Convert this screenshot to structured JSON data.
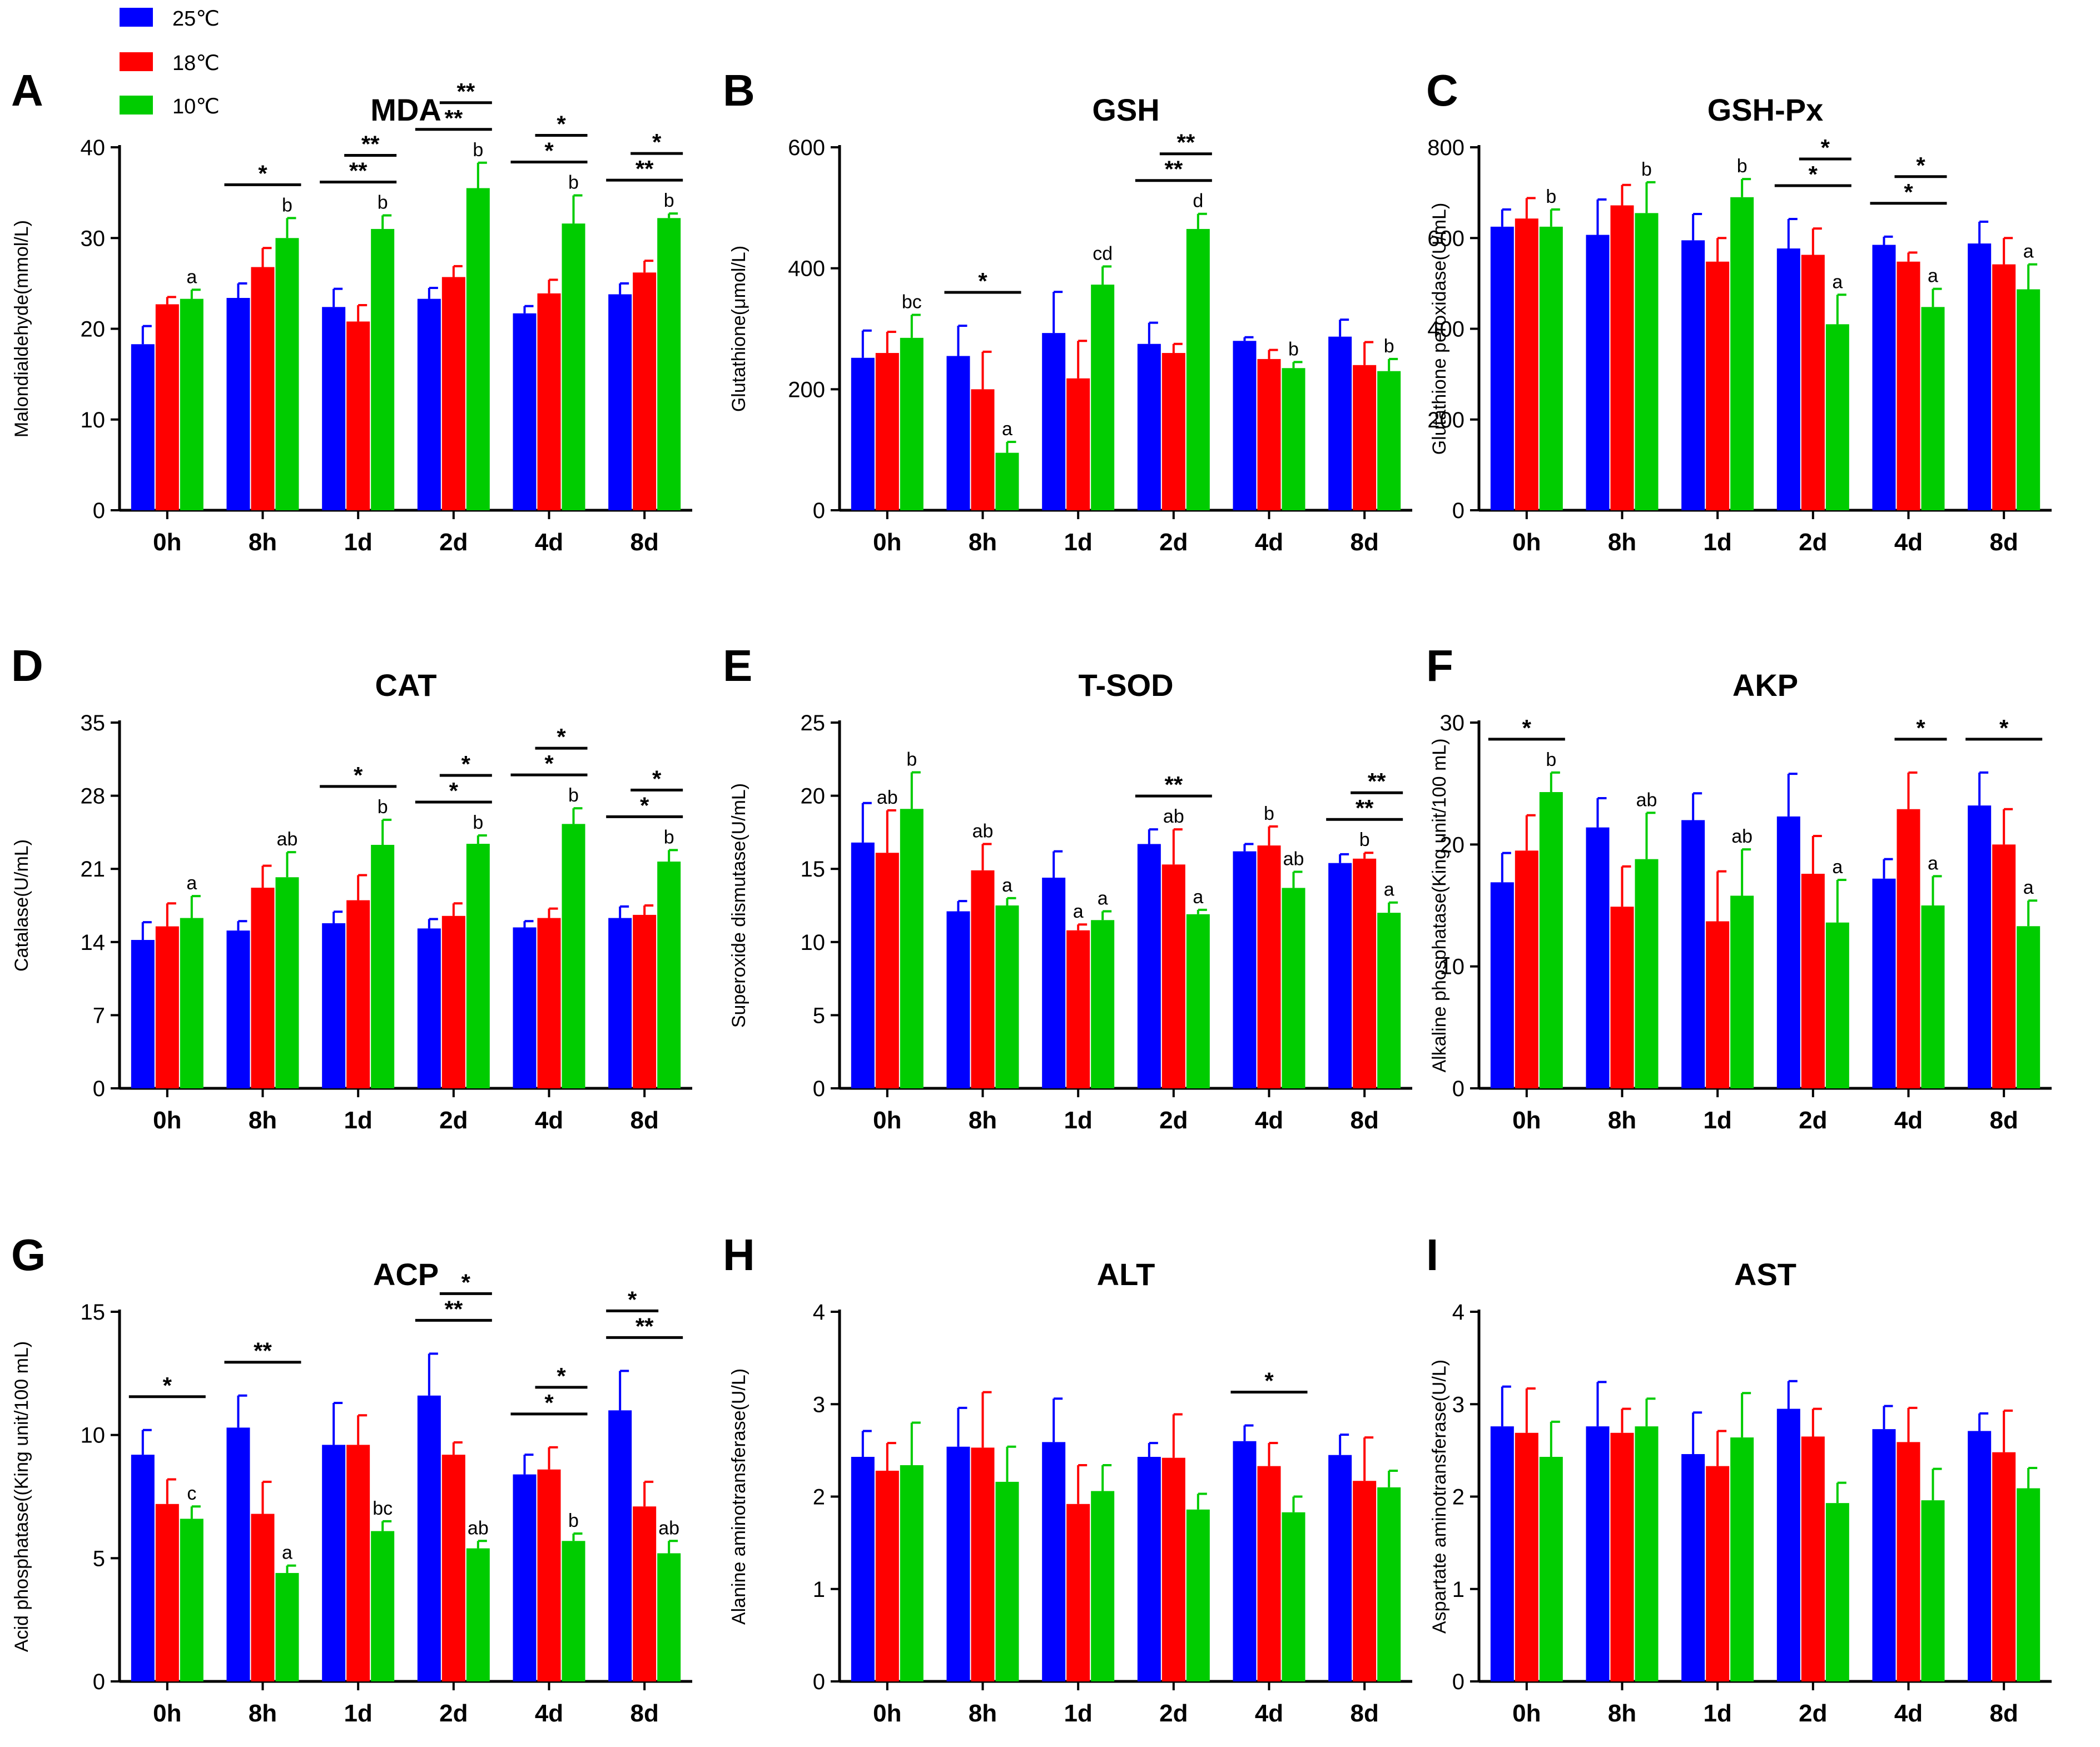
{
  "legend": {
    "entries": [
      {
        "label": "25℃",
        "color": "#0000FF"
      },
      {
        "label": "18℃",
        "color": "#FF0000"
      },
      {
        "label": "10℃",
        "color": "#00CC00"
      }
    ]
  },
  "chart_data": [
    {
      "panel": "A",
      "type": "bar",
      "title": "MDA",
      "ylabel": "Malondialdehyde(mmol/L)",
      "categories": [
        "0h",
        "8h",
        "1d",
        "2d",
        "4d",
        "8d"
      ],
      "ylim": [
        0,
        40
      ],
      "yticks": [
        0,
        10,
        20,
        30,
        40
      ],
      "series": [
        {
          "name": "25℃",
          "values": [
            18.3,
            23.4,
            22.4,
            23.3,
            21.7,
            23.8
          ],
          "errors": [
            2,
            1.6,
            2,
            1.2,
            0.8,
            1.2
          ]
        },
        {
          "name": "18℃",
          "values": [
            22.7,
            26.8,
            20.8,
            25.7,
            23.9,
            26.2
          ],
          "errors": [
            0.8,
            2.1,
            1.8,
            1.2,
            1.5,
            1.3
          ]
        },
        {
          "name": "10℃",
          "values": [
            23.3,
            30.0,
            31.0,
            35.5,
            31.6,
            32.2
          ],
          "errors": [
            1,
            2.2,
            1.5,
            2.8,
            3.1,
            0.5
          ]
        }
      ],
      "letters": [
        "a",
        "b",
        "b",
        "b",
        "b",
        "b"
      ],
      "significance": [
        {
          "category": "8h",
          "pair": "25-10",
          "label": "*"
        },
        {
          "category": "1d",
          "pair": "25-10",
          "label": "**"
        },
        {
          "category": "1d",
          "pair": "18-10",
          "label": "**"
        },
        {
          "category": "2d",
          "pair": "25-10",
          "label": "**"
        },
        {
          "category": "2d",
          "pair": "18-10",
          "label": "**"
        },
        {
          "category": "4d",
          "pair": "25-10",
          "label": "*"
        },
        {
          "category": "4d",
          "pair": "18-10",
          "label": "*"
        },
        {
          "category": "8d",
          "pair": "25-10",
          "label": "**"
        },
        {
          "category": "8d",
          "pair": "18-10",
          "label": "*"
        }
      ]
    },
    {
      "panel": "B",
      "type": "bar",
      "title": "GSH",
      "ylabel": "Glutathione(μmol/L)",
      "categories": [
        "0h",
        "8h",
        "1d",
        "2d",
        "4d",
        "8d"
      ],
      "ylim": [
        0,
        600
      ],
      "yticks": [
        0,
        200,
        400,
        600
      ],
      "series": [
        {
          "name": "25℃",
          "values": [
            252,
            255,
            293,
            275,
            280,
            287
          ],
          "errors": [
            45,
            50,
            68,
            35,
            6,
            28
          ]
        },
        {
          "name": "18℃",
          "values": [
            260,
            200,
            218,
            260,
            250,
            240
          ],
          "errors": [
            35,
            62,
            62,
            15,
            15,
            38
          ]
        },
        {
          "name": "10℃",
          "values": [
            285,
            95,
            373,
            465,
            235,
            230
          ],
          "errors": [
            38,
            18,
            30,
            25,
            10,
            20
          ]
        }
      ],
      "letters": [
        "bc",
        "a",
        "cd",
        "d",
        "b",
        "b"
      ],
      "significance": [
        {
          "category": "8h",
          "pair": "25-10",
          "label": "*"
        },
        {
          "category": "2d",
          "pair": "25-10",
          "label": "**"
        },
        {
          "category": "2d",
          "pair": "18-10",
          "label": "**"
        }
      ]
    },
    {
      "panel": "C",
      "type": "bar",
      "title": "GSH-Px",
      "ylabel": "Glutathione peroxidase(U/mL)",
      "categories": [
        "0h",
        "8h",
        "1d",
        "2d",
        "4d",
        "8d"
      ],
      "ylim": [
        0,
        800
      ],
      "yticks": [
        0,
        200,
        400,
        600,
        800
      ],
      "series": [
        {
          "name": "25℃",
          "values": [
            625,
            607,
            595,
            577,
            585,
            588
          ],
          "errors": [
            38,
            78,
            58,
            65,
            18,
            48
          ]
        },
        {
          "name": "18℃",
          "values": [
            643,
            672,
            548,
            563,
            548,
            542
          ],
          "errors": [
            45,
            45,
            52,
            58,
            20,
            58
          ]
        },
        {
          "name": "10℃",
          "values": [
            625,
            655,
            690,
            410,
            448,
            487
          ],
          "errors": [
            38,
            68,
            40,
            65,
            40,
            55
          ]
        }
      ],
      "letters": [
        "b",
        "b",
        "b",
        "a",
        "a",
        "a"
      ],
      "significance": [
        {
          "category": "2d",
          "pair": "25-10",
          "label": "*"
        },
        {
          "category": "2d",
          "pair": "18-10",
          "label": "*"
        },
        {
          "category": "4d",
          "pair": "25-10",
          "label": "*"
        },
        {
          "category": "4d",
          "pair": "18-10",
          "label": "*"
        }
      ]
    },
    {
      "panel": "D",
      "type": "bar",
      "title": "CAT",
      "ylabel": "Catalase(U/mL)",
      "categories": [
        "0h",
        "8h",
        "1d",
        "2d",
        "4d",
        "8d"
      ],
      "ylim": [
        0,
        35
      ],
      "yticks": [
        0,
        7,
        14,
        21,
        28,
        35
      ],
      "series": [
        {
          "name": "25℃",
          "values": [
            14.2,
            15.1,
            15.8,
            15.3,
            15.4,
            16.3
          ],
          "errors": [
            1.7,
            0.9,
            1.1,
            0.9,
            0.6,
            1.1
          ]
        },
        {
          "name": "18℃",
          "values": [
            15.5,
            19.2,
            18.0,
            16.5,
            16.3,
            16.6
          ],
          "errors": [
            2.2,
            2.1,
            2.4,
            1.2,
            0.9,
            0.9
          ]
        },
        {
          "name": "10℃",
          "values": [
            16.3,
            20.2,
            23.3,
            23.4,
            25.3,
            21.7
          ],
          "errors": [
            2.1,
            2.4,
            2.4,
            0.8,
            1.5,
            1.1
          ]
        }
      ],
      "letters": [
        "a",
        "ab",
        "b",
        "b",
        "b",
        "b"
      ],
      "significance": [
        {
          "category": "1d",
          "pair": "25-10",
          "label": "*"
        },
        {
          "category": "2d",
          "pair": "25-10",
          "label": "*"
        },
        {
          "category": "2d",
          "pair": "18-10",
          "label": "*"
        },
        {
          "category": "4d",
          "pair": "25-10",
          "label": "*"
        },
        {
          "category": "4d",
          "pair": "18-10",
          "label": "*"
        },
        {
          "category": "8d",
          "pair": "25-10",
          "label": "*"
        },
        {
          "category": "8d",
          "pair": "18-10",
          "label": "*"
        }
      ]
    },
    {
      "panel": "E",
      "type": "bar",
      "title": "T-SOD",
      "ylabel": "Superoxide dismutase(U/mL)",
      "categories": [
        "0h",
        "8h",
        "1d",
        "2d",
        "4d",
        "8d"
      ],
      "ylim": [
        0,
        25
      ],
      "yticks": [
        0,
        5,
        10,
        15,
        20,
        25
      ],
      "series": [
        {
          "name": "25℃",
          "values": [
            16.8,
            12.1,
            14.4,
            16.7,
            16.2,
            15.4
          ],
          "errors": [
            2.7,
            0.7,
            1.8,
            1.0,
            0.5,
            0.6
          ]
        },
        {
          "name": "18℃",
          "values": [
            16.1,
            14.9,
            10.8,
            15.3,
            16.6,
            15.7
          ],
          "errors": [
            2.9,
            1.8,
            0.4,
            2.4,
            1.3,
            0.4
          ]
        },
        {
          "name": "10℃",
          "values": [
            19.1,
            12.5,
            11.5,
            11.9,
            13.7,
            12.0
          ],
          "errors": [
            2.5,
            0.5,
            0.6,
            0.3,
            1.1,
            0.7
          ]
        }
      ],
      "letters": [
        "b",
        "a",
        "a",
        "a",
        "ab",
        "a"
      ],
      "letters_mid": [
        "ab",
        "ab",
        "a",
        "ab",
        "b",
        "b"
      ],
      "significance": [
        {
          "category": "2d",
          "pair": "25-10",
          "label": "**"
        },
        {
          "category": "8d",
          "pair": "25-10",
          "label": "**"
        },
        {
          "category": "8d",
          "pair": "18-10",
          "label": "**"
        }
      ]
    },
    {
      "panel": "F",
      "type": "bar",
      "title": "AKP",
      "ylabel": "Alkaline phosphatase(King unit/100 mL)",
      "categories": [
        "0h",
        "8h",
        "1d",
        "2d",
        "4d",
        "8d"
      ],
      "ylim": [
        0,
        30
      ],
      "yticks": [
        0,
        10,
        20,
        30
      ],
      "series": [
        {
          "name": "25℃",
          "values": [
            16.9,
            21.4,
            22.0,
            22.3,
            17.2,
            23.2
          ],
          "errors": [
            2.4,
            2.4,
            2.2,
            3.5,
            1.6,
            2.7
          ]
        },
        {
          "name": "18℃",
          "values": [
            19.5,
            14.9,
            13.7,
            17.6,
            22.9,
            20.0
          ],
          "errors": [
            2.9,
            3.3,
            4.1,
            3.1,
            3.0,
            2.9
          ]
        },
        {
          "name": "10℃",
          "values": [
            24.3,
            18.8,
            15.8,
            13.6,
            15.0,
            13.3
          ],
          "errors": [
            1.6,
            3.8,
            3.8,
            3.5,
            2.4,
            2.1
          ]
        }
      ],
      "letters": [
        "b",
        "ab",
        "ab",
        "a",
        "a",
        "a"
      ],
      "significance": [
        {
          "category": "0h",
          "pair": "25-10",
          "label": "*"
        },
        {
          "category": "4d",
          "pair": "18-10",
          "label": "*"
        },
        {
          "category": "8d",
          "pair": "25-10",
          "label": "*"
        }
      ]
    },
    {
      "panel": "G",
      "type": "bar",
      "title": "ACP",
      "ylabel": "Acid phosphatase((King unit/100 mL)",
      "categories": [
        "0h",
        "8h",
        "1d",
        "2d",
        "4d",
        "8d"
      ],
      "ylim": [
        0,
        15
      ],
      "yticks": [
        0,
        5,
        10,
        15
      ],
      "series": [
        {
          "name": "25℃",
          "values": [
            9.2,
            10.3,
            9.6,
            11.6,
            8.4,
            11.0
          ],
          "errors": [
            1.0,
            1.3,
            1.7,
            1.7,
            0.8,
            1.6
          ]
        },
        {
          "name": "18℃",
          "values": [
            7.2,
            6.8,
            9.6,
            9.2,
            8.6,
            7.1
          ],
          "errors": [
            1.0,
            1.3,
            1.2,
            0.5,
            0.9,
            1.0
          ]
        },
        {
          "name": "10℃",
          "values": [
            6.6,
            4.4,
            6.1,
            5.4,
            5.7,
            5.2
          ],
          "errors": [
            0.5,
            0.3,
            0.4,
            0.3,
            0.3,
            0.5
          ]
        }
      ],
      "letters": [
        "c",
        "a",
        "bc",
        "ab",
        "b",
        "ab"
      ],
      "significance": [
        {
          "category": "0h",
          "pair": "25-10",
          "label": "*"
        },
        {
          "category": "8h",
          "pair": "25-10",
          "label": "**"
        },
        {
          "category": "2d",
          "pair": "25-10",
          "label": "**"
        },
        {
          "category": "2d",
          "pair": "18-10",
          "label": "*"
        },
        {
          "category": "4d",
          "pair": "25-10",
          "label": "*"
        },
        {
          "category": "4d",
          "pair": "18-10",
          "label": "*"
        },
        {
          "category": "8d",
          "pair": "25-10",
          "label": "**"
        },
        {
          "category": "8d",
          "pair": "25-18",
          "label": "*"
        }
      ]
    },
    {
      "panel": "H",
      "type": "bar",
      "title": "ALT",
      "ylabel": "Alanine aminotransferase(U/L)",
      "categories": [
        "0h",
        "8h",
        "1d",
        "2d",
        "4d",
        "8d"
      ],
      "ylim": [
        0,
        4
      ],
      "yticks": [
        0,
        1,
        2,
        3,
        4
      ],
      "series": [
        {
          "name": "25℃",
          "values": [
            2.43,
            2.54,
            2.59,
            2.43,
            2.6,
            2.45
          ],
          "errors": [
            0.28,
            0.42,
            0.47,
            0.15,
            0.17,
            0.22
          ]
        },
        {
          "name": "18℃",
          "values": [
            2.28,
            2.53,
            1.92,
            2.42,
            2.33,
            2.17
          ],
          "errors": [
            0.3,
            0.6,
            0.42,
            0.47,
            0.25,
            0.47
          ]
        },
        {
          "name": "10℃",
          "values": [
            2.34,
            2.16,
            2.06,
            1.86,
            1.83,
            2.1
          ],
          "errors": [
            0.46,
            0.38,
            0.28,
            0.17,
            0.17,
            0.18
          ]
        }
      ],
      "letters": [],
      "significance": [
        {
          "category": "4d",
          "pair": "25-10",
          "label": "*"
        }
      ]
    },
    {
      "panel": "I",
      "type": "bar",
      "title": "AST",
      "ylabel": "Aspartate aminotransferase(U/L)",
      "categories": [
        "0h",
        "8h",
        "1d",
        "2d",
        "4d",
        "8d"
      ],
      "ylim": [
        0,
        4
      ],
      "yticks": [
        0,
        1,
        2,
        3,
        4
      ],
      "series": [
        {
          "name": "25℃",
          "values": [
            2.76,
            2.76,
            2.46,
            2.95,
            2.73,
            2.71
          ],
          "errors": [
            0.43,
            0.48,
            0.45,
            0.3,
            0.25,
            0.19
          ]
        },
        {
          "name": "18℃",
          "values": [
            2.69,
            2.69,
            2.33,
            2.65,
            2.59,
            2.48
          ],
          "errors": [
            0.48,
            0.26,
            0.38,
            0.3,
            0.37,
            0.45
          ]
        },
        {
          "name": "10℃",
          "values": [
            2.43,
            2.76,
            2.64,
            1.93,
            1.96,
            2.09
          ],
          "errors": [
            0.38,
            0.3,
            0.48,
            0.22,
            0.34,
            0.22
          ]
        }
      ],
      "letters": [],
      "significance": []
    }
  ]
}
